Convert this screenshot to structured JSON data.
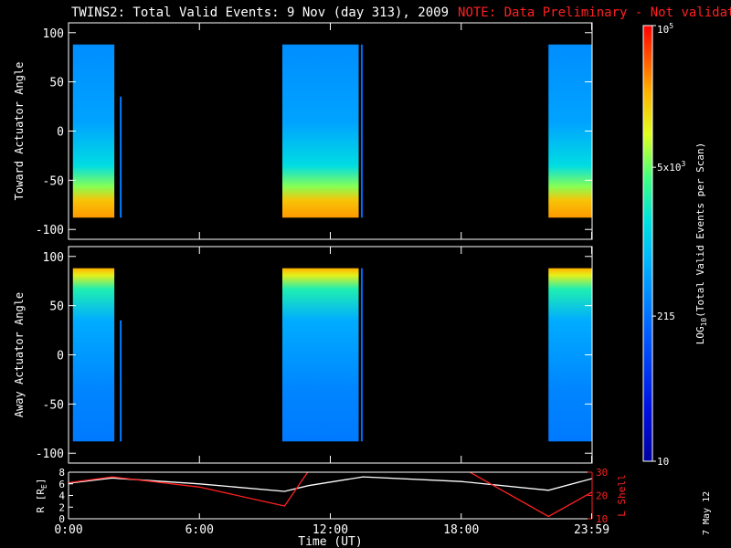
{
  "header": {
    "title": "TWINS2: Total Valid Events:  9 Nov (day 313), 2009",
    "note": "NOTE: Data Preliminary - Not validated"
  },
  "footer": {
    "date_stamp": "7 May 12"
  },
  "colors": {
    "background": "#000000",
    "axis": "#ffffff",
    "note": "#ff2020",
    "lshell": "#ff2020",
    "range": "#ffffff"
  },
  "chart_data": [
    {
      "type": "heatmap",
      "id": "toward",
      "ylabel": "Toward Actuator Angle",
      "ylim": [
        -110,
        110
      ],
      "yticks": [
        100,
        50,
        0,
        -50,
        -100
      ],
      "xlim": [
        0,
        24
      ],
      "data_ylim": [
        -88,
        88
      ],
      "segments": [
        {
          "start": 0.2,
          "end": 2.1
        },
        {
          "start": 9.8,
          "end": 13.3
        },
        {
          "start": 22.0,
          "end": 23.99
        }
      ],
      "spikes": [
        {
          "hour": 2.35,
          "ymin": -88,
          "ymax": 35,
          "value": 250
        },
        {
          "hour": 13.4,
          "ymin": -88,
          "ymax": 88,
          "value": 200
        }
      ]
    },
    {
      "type": "heatmap",
      "id": "away",
      "ylabel": "Away Actuator Angle",
      "ylim": [
        -110,
        110
      ],
      "yticks": [
        100,
        50,
        0,
        -50,
        -100
      ],
      "xlim": [
        0,
        24
      ],
      "data_ylim": [
        -88,
        88
      ],
      "segments": [
        {
          "start": 0.2,
          "end": 2.1
        },
        {
          "start": 9.8,
          "end": 13.3
        },
        {
          "start": 22.0,
          "end": 23.99
        }
      ],
      "spikes": [
        {
          "hour": 2.35,
          "ymin": -88,
          "ymax": 35,
          "value": 250
        },
        {
          "hour": 13.4,
          "ymin": -88,
          "ymax": 88,
          "value": 200
        }
      ]
    },
    {
      "type": "line",
      "id": "orbit",
      "xlabel": "Time (UT)",
      "xticks": [
        "0:00",
        "6:00",
        "12:00",
        "18:00",
        "23:59"
      ],
      "xtick_hours": [
        0,
        6,
        12,
        18,
        23.98
      ],
      "ylabel_left": "R [R",
      "ylabel_left_sub": "E",
      "ylabel_left_close": "]",
      "ylim_left": [
        0,
        8
      ],
      "yticks_left": [
        0,
        2,
        4,
        6,
        8
      ],
      "ylabel_right": "L Shell",
      "ylim_right": [
        10,
        30
      ],
      "yticks_right": [
        10,
        20,
        30
      ],
      "series": [
        {
          "axis": "left",
          "x": [
            0,
            2,
            6,
            9.9,
            11,
            13.5,
            18,
            22,
            24
          ],
          "y": [
            6.1,
            7.0,
            6.0,
            4.7,
            5.7,
            7.2,
            6.4,
            4.9,
            6.9
          ]
        },
        {
          "axis": "right",
          "x": [
            0,
            2,
            6,
            9.9,
            11.0,
            18.3,
            22.0,
            24
          ],
          "y": [
            25.5,
            28,
            23.6,
            15.5,
            30.5,
            30.5,
            11,
            21.5
          ]
        }
      ]
    },
    {
      "type": "heatmap-colorbar",
      "label": "LOG",
      "label_sub": "10",
      "label_rest": "(Total Valid  Events per Scan)",
      "scale": "log",
      "range": [
        10,
        100000
      ],
      "ticks": [
        {
          "value": 100000,
          "base": "10",
          "exp": "5"
        },
        {
          "value": 5000,
          "base": "5x10",
          "exp": "3"
        },
        {
          "value": 215,
          "base": "215",
          "exp": ""
        },
        {
          "value": 10,
          "base": "10",
          "exp": ""
        }
      ]
    }
  ]
}
